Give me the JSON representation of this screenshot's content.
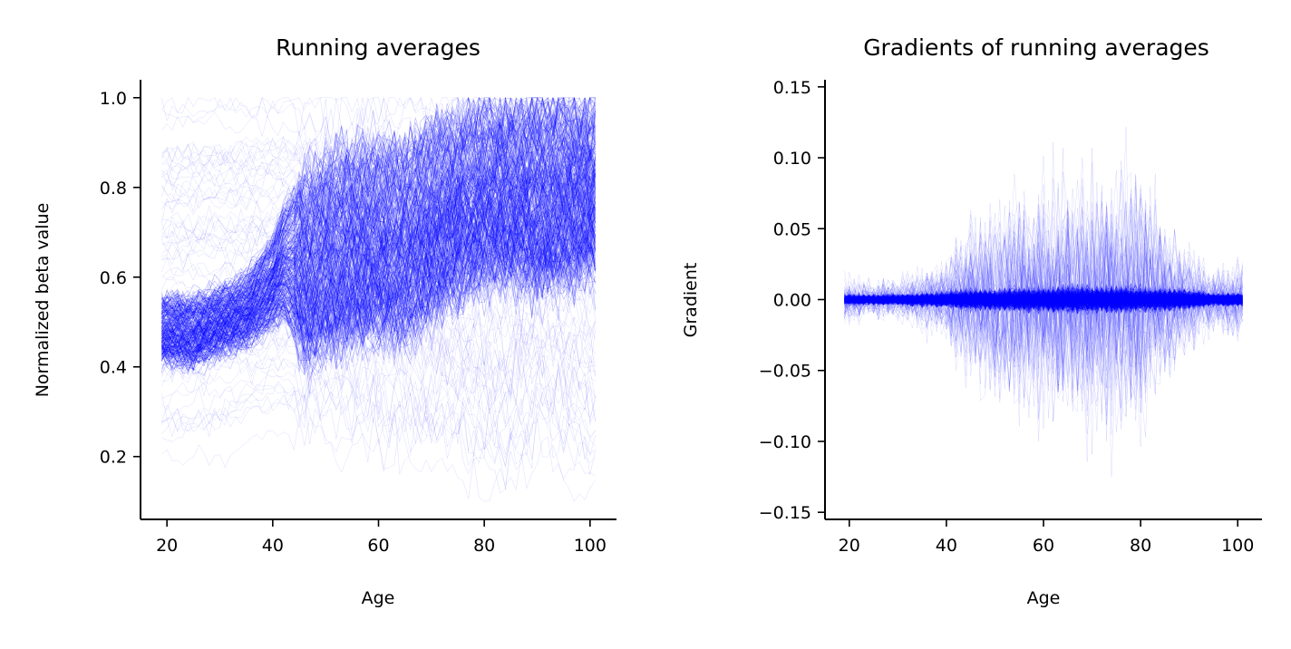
{
  "figure": {
    "panels": [
      {
        "title": "Running averages",
        "xlabel": "Age",
        "ylabel": "Normalized beta value"
      },
      {
        "title": "Gradients of running averages",
        "xlabel": "Age",
        "ylabel": "Gradient"
      }
    ]
  },
  "chart_data": [
    {
      "type": "line",
      "title": "Running averages",
      "xlabel": "Age",
      "ylabel": "Normalized beta value",
      "xlim": [
        15,
        105
      ],
      "ylim": [
        0.06,
        1.04
      ],
      "xticks": [
        20,
        40,
        60,
        80,
        100
      ],
      "xtick_labels": [
        "20",
        "40",
        "60",
        "80",
        "100"
      ],
      "yticks": [
        0.2,
        0.4,
        0.6,
        0.8,
        1.0
      ],
      "ytick_labels": [
        "0.2",
        "0.4",
        "0.6",
        "0.8",
        "1.0"
      ],
      "grid": false,
      "line_color": "#0000ff",
      "x_range_of_lines": [
        19,
        101
      ],
      "envelope": {
        "x": [
          19,
          25,
          30,
          35,
          40,
          42,
          45,
          47,
          50,
          55,
          60,
          65,
          70,
          75,
          80,
          85,
          90,
          95,
          101
        ],
        "dense_lo": [
          0.42,
          0.41,
          0.44,
          0.46,
          0.5,
          0.52,
          0.46,
          0.42,
          0.45,
          0.47,
          0.48,
          0.47,
          0.52,
          0.56,
          0.6,
          0.6,
          0.58,
          0.6,
          0.62
        ],
        "dense_hi": [
          0.55,
          0.55,
          0.57,
          0.6,
          0.68,
          0.75,
          0.8,
          0.82,
          0.85,
          0.87,
          0.88,
          0.88,
          0.92,
          0.95,
          0.97,
          0.97,
          0.98,
          0.98,
          0.98
        ],
        "outer_lo": [
          0.18,
          0.19,
          0.2,
          0.22,
          0.24,
          0.25,
          0.24,
          0.22,
          0.22,
          0.21,
          0.2,
          0.19,
          0.17,
          0.15,
          0.13,
          0.12,
          0.2,
          0.14,
          0.1
        ],
        "outer_hi": [
          1.0,
          1.0,
          1.0,
          1.0,
          1.0,
          1.0,
          1.0,
          1.0,
          1.0,
          1.0,
          1.0,
          1.0,
          1.0,
          1.0,
          1.0,
          1.0,
          1.0,
          1.0,
          1.0
        ]
      }
    },
    {
      "type": "line",
      "title": "Gradients of running averages",
      "xlabel": "Age",
      "ylabel": "Gradient",
      "xlim": [
        15,
        105
      ],
      "ylim": [
        -0.155,
        0.155
      ],
      "xticks": [
        20,
        40,
        60,
        80,
        100
      ],
      "xtick_labels": [
        "20",
        "40",
        "60",
        "80",
        "100"
      ],
      "yticks": [
        -0.15,
        -0.1,
        -0.05,
        0.0,
        0.05,
        0.1,
        0.15
      ],
      "ytick_labels": [
        "−0.15",
        "−0.10",
        "−0.05",
        "0.00",
        "0.05",
        "0.10",
        "0.15"
      ],
      "grid": false,
      "line_color": "#0000ff",
      "x_range_of_lines": [
        19,
        101
      ],
      "envelope": {
        "x": [
          19,
          25,
          30,
          35,
          40,
          45,
          50,
          55,
          60,
          65,
          70,
          75,
          80,
          85,
          90,
          95,
          101
        ],
        "dense_lo": [
          -0.004,
          -0.004,
          -0.004,
          -0.005,
          -0.006,
          -0.008,
          -0.008,
          -0.009,
          -0.009,
          -0.01,
          -0.01,
          -0.01,
          -0.009,
          -0.009,
          -0.007,
          -0.005,
          -0.005
        ],
        "dense_hi": [
          0.004,
          0.004,
          0.004,
          0.005,
          0.006,
          0.008,
          0.008,
          0.009,
          0.009,
          0.01,
          0.01,
          0.01,
          0.009,
          0.009,
          0.007,
          0.005,
          0.005
        ],
        "outer_lo": [
          -0.02,
          -0.02,
          -0.02,
          -0.03,
          -0.04,
          -0.08,
          -0.1,
          -0.11,
          -0.12,
          -0.13,
          -0.13,
          -0.12,
          -0.14,
          -0.08,
          -0.05,
          -0.03,
          -0.04
        ],
        "outer_hi": [
          0.025,
          0.02,
          0.02,
          0.03,
          0.04,
          0.08,
          0.09,
          0.1,
          0.11,
          0.12,
          0.12,
          0.14,
          0.11,
          0.08,
          0.05,
          0.03,
          0.04
        ]
      }
    }
  ]
}
